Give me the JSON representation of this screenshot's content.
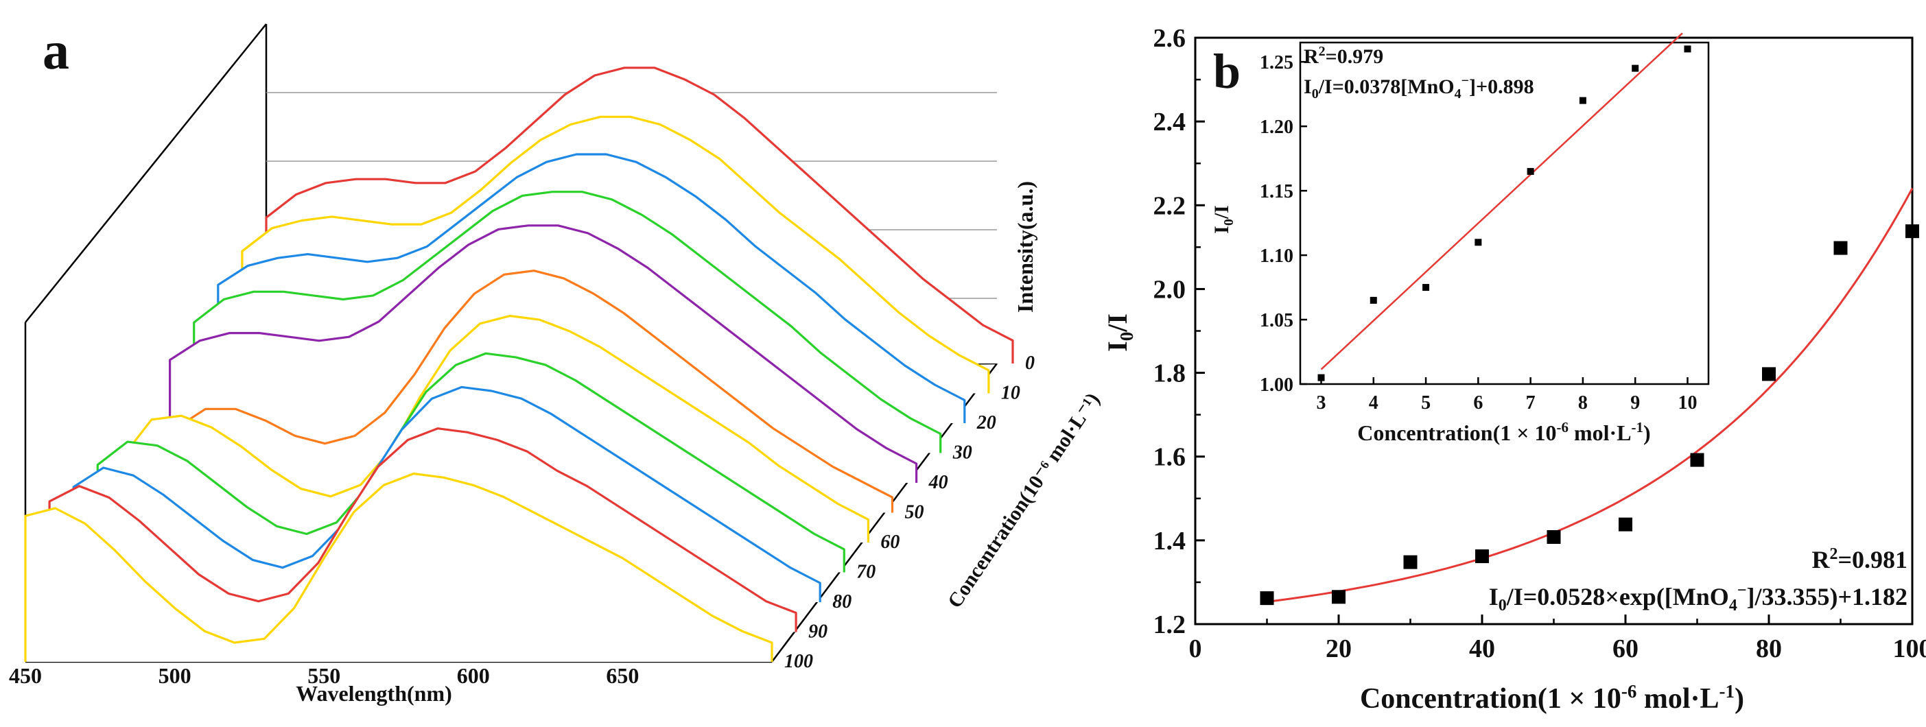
{
  "chart_data": [
    {
      "panel": "a",
      "type": "line",
      "panel_label": "a",
      "title": "",
      "xlabel": "Wavelength(nm)",
      "ylabel": "Intensity(a.u.)",
      "zlabel": "Concentration(10⁻⁶ mol·L⁻¹)",
      "x_ticks": [
        "450",
        "500",
        "550",
        "600",
        "650"
      ],
      "xlim": [
        450,
        700
      ],
      "z_ticks": [
        "0",
        "10",
        "20",
        "30",
        "40",
        "50",
        "60",
        "70",
        "80",
        "90",
        "100"
      ],
      "x": [
        450,
        460,
        470,
        480,
        490,
        500,
        510,
        520,
        530,
        540,
        550,
        560,
        570,
        580,
        590,
        600,
        610,
        620,
        630,
        640,
        650,
        660,
        670,
        680,
        690,
        700
      ],
      "series": [
        {
          "name": "0",
          "color": "#e53935",
          "values": [
            0.38,
            0.44,
            0.47,
            0.48,
            0.48,
            0.47,
            0.47,
            0.5,
            0.56,
            0.63,
            0.7,
            0.75,
            0.77,
            0.77,
            0.74,
            0.7,
            0.64,
            0.57,
            0.5,
            0.43,
            0.36,
            0.29,
            0.22,
            0.16,
            0.1,
            0.06
          ]
        },
        {
          "name": "10",
          "color": "#ffd600",
          "values": [
            0.37,
            0.43,
            0.45,
            0.46,
            0.45,
            0.44,
            0.44,
            0.47,
            0.53,
            0.6,
            0.66,
            0.7,
            0.72,
            0.72,
            0.7,
            0.66,
            0.61,
            0.54,
            0.47,
            0.41,
            0.35,
            0.28,
            0.21,
            0.15,
            0.1,
            0.06
          ]
        },
        {
          "name": "20",
          "color": "#1e88e5",
          "values": [
            0.36,
            0.41,
            0.43,
            0.44,
            0.43,
            0.42,
            0.43,
            0.46,
            0.52,
            0.58,
            0.64,
            0.68,
            0.7,
            0.7,
            0.68,
            0.64,
            0.59,
            0.53,
            0.46,
            0.4,
            0.34,
            0.27,
            0.21,
            0.15,
            0.1,
            0.06
          ]
        },
        {
          "name": "30",
          "color": "#2bd12b",
          "values": [
            0.34,
            0.4,
            0.42,
            0.42,
            0.41,
            0.4,
            0.41,
            0.45,
            0.51,
            0.57,
            0.63,
            0.67,
            0.68,
            0.68,
            0.66,
            0.62,
            0.57,
            0.51,
            0.45,
            0.39,
            0.33,
            0.26,
            0.2,
            0.14,
            0.09,
            0.05
          ]
        },
        {
          "name": "40",
          "color": "#8e24aa",
          "values": [
            0.32,
            0.37,
            0.39,
            0.39,
            0.38,
            0.37,
            0.38,
            0.42,
            0.49,
            0.56,
            0.62,
            0.66,
            0.67,
            0.67,
            0.65,
            0.61,
            0.56,
            0.5,
            0.44,
            0.38,
            0.32,
            0.26,
            0.2,
            0.14,
            0.09,
            0.05
          ]
        },
        {
          "name": "50",
          "color": "#ff7a1a",
          "values": [
            0.12,
            0.22,
            0.27,
            0.27,
            0.24,
            0.2,
            0.18,
            0.2,
            0.26,
            0.36,
            0.48,
            0.57,
            0.62,
            0.63,
            0.61,
            0.57,
            0.52,
            0.46,
            0.4,
            0.34,
            0.28,
            0.22,
            0.17,
            0.12,
            0.08,
            0.04
          ]
        },
        {
          "name": "60",
          "color": "#ffd600",
          "values": [
            0.22,
            0.32,
            0.33,
            0.3,
            0.25,
            0.19,
            0.14,
            0.12,
            0.15,
            0.24,
            0.38,
            0.5,
            0.57,
            0.59,
            0.58,
            0.55,
            0.51,
            0.46,
            0.41,
            0.36,
            0.31,
            0.26,
            0.2,
            0.15,
            0.1,
            0.06
          ]
        },
        {
          "name": "70",
          "color": "#2bd12b",
          "values": [
            0.28,
            0.34,
            0.33,
            0.29,
            0.23,
            0.17,
            0.12,
            0.1,
            0.13,
            0.22,
            0.35,
            0.47,
            0.54,
            0.57,
            0.56,
            0.54,
            0.5,
            0.45,
            0.4,
            0.35,
            0.3,
            0.25,
            0.2,
            0.15,
            0.1,
            0.06
          ]
        },
        {
          "name": "80",
          "color": "#1e88e5",
          "values": [
            0.3,
            0.35,
            0.33,
            0.28,
            0.22,
            0.16,
            0.11,
            0.09,
            0.12,
            0.2,
            0.33,
            0.45,
            0.53,
            0.56,
            0.55,
            0.53,
            0.49,
            0.44,
            0.39,
            0.34,
            0.29,
            0.24,
            0.19,
            0.14,
            0.09,
            0.05
          ]
        },
        {
          "name": "90",
          "color": "#e53935",
          "values": [
            0.34,
            0.38,
            0.35,
            0.29,
            0.22,
            0.15,
            0.1,
            0.08,
            0.1,
            0.18,
            0.31,
            0.43,
            0.5,
            0.53,
            0.52,
            0.5,
            0.47,
            0.42,
            0.38,
            0.33,
            0.28,
            0.23,
            0.18,
            0.13,
            0.08,
            0.05
          ]
        },
        {
          "name": "100",
          "color": "#ffd600",
          "values": [
            0.38,
            0.4,
            0.36,
            0.29,
            0.21,
            0.14,
            0.08,
            0.05,
            0.06,
            0.14,
            0.27,
            0.39,
            0.46,
            0.49,
            0.48,
            0.46,
            0.43,
            0.39,
            0.35,
            0.31,
            0.27,
            0.22,
            0.17,
            0.12,
            0.08,
            0.05
          ]
        }
      ]
    },
    {
      "panel": "b",
      "type": "scatter",
      "panel_label": "b",
      "xlabel": "Concentration(1 × 10⁻⁶ mol·L⁻¹)",
      "ylabel": "I₀/I",
      "xlim": [
        0,
        100
      ],
      "ylim": [
        1.2,
        2.6
      ],
      "x_ticks": [
        0,
        20,
        40,
        60,
        80,
        100
      ],
      "y_ticks": [
        1.2,
        1.4,
        1.6,
        1.8,
        2.0,
        2.2,
        2.4,
        2.6
      ],
      "points": {
        "x": [
          10,
          20,
          30,
          40,
          50,
          60,
          70,
          80,
          90,
          100
        ],
        "y": [
          1.262,
          1.265,
          1.348,
          1.362,
          1.408,
          1.438,
          1.592,
          1.797,
          2.098,
          2.138
        ]
      },
      "fit": {
        "type": "exponential",
        "a": 0.0528,
        "t": 33.355,
        "c": 1.182,
        "color": "#e53935",
        "r2_text": "R²=0.981",
        "equation_text": "I₀/I=0.0528×exp([MnO₄⁻]/33.355)+1.182"
      },
      "inset": {
        "type": "scatter",
        "xlabel": "Concentration(1 × 10⁻⁶ mol·L⁻¹)",
        "ylabel": "I₀/I",
        "xlim": [
          2.6,
          10.4
        ],
        "ylim": [
          1.0,
          1.265
        ],
        "x_ticks": [
          3,
          4,
          5,
          6,
          7,
          8,
          9,
          10
        ],
        "y_ticks": [
          1.0,
          1.05,
          1.1,
          1.15,
          1.2,
          1.25
        ],
        "points": {
          "x": [
            3,
            4,
            5,
            6,
            7,
            8,
            9,
            10
          ],
          "y": [
            1.005,
            1.065,
            1.075,
            1.11,
            1.165,
            1.22,
            1.245,
            1.26
          ]
        },
        "fit": {
          "type": "linear",
          "slope": 0.0378,
          "intercept": 0.898,
          "color": "#e53935",
          "r2_text": "R²=0.979",
          "equation_text": "I₀/I=0.0378[MnO₄⁻]+0.898"
        }
      }
    }
  ]
}
